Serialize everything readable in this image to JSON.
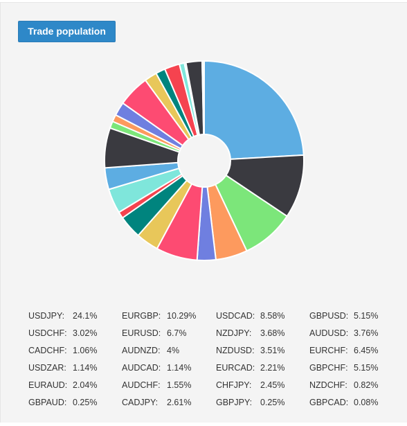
{
  "title_button": {
    "label": "Trade population"
  },
  "chart_data": {
    "type": "pie",
    "donut": true,
    "title": "",
    "series": [
      {
        "name": "USDJPY",
        "value": 24.1,
        "label": "24.1%",
        "color": "#5dade2"
      },
      {
        "name": "EURGBP",
        "value": 10.29,
        "label": "10.29%",
        "color": "#3a3a40"
      },
      {
        "name": "USDCAD",
        "value": 8.58,
        "label": "8.58%",
        "color": "#7ce67a"
      },
      {
        "name": "GBPUSD",
        "value": 5.15,
        "label": "5.15%",
        "color": "#fd9a5e"
      },
      {
        "name": "USDCHF",
        "value": 3.02,
        "label": "3.02%",
        "color": "#6f7fe0"
      },
      {
        "name": "EURUSD",
        "value": 6.7,
        "label": "6.7%",
        "color": "#fd4b72"
      },
      {
        "name": "NZDJPY",
        "value": 3.68,
        "label": "3.68%",
        "color": "#e8c75a"
      },
      {
        "name": "AUDUSD",
        "value": 3.76,
        "label": "3.76%",
        "color": "#00847e"
      },
      {
        "name": "CADCHF",
        "value": 1.06,
        "label": "1.06%",
        "color": "#f5434f"
      },
      {
        "name": "AUDNZD",
        "value": 4,
        "label": "4%",
        "color": "#7fe6db"
      },
      {
        "name": "NZDUSD",
        "value": 3.51,
        "label": "3.51%",
        "color": "#5dade2"
      },
      {
        "name": "EURCHF",
        "value": 6.45,
        "label": "6.45%",
        "color": "#3a3a40"
      },
      {
        "name": "USDZAR",
        "value": 1.14,
        "label": "1.14%",
        "color": "#7ce67a"
      },
      {
        "name": "AUDCAD",
        "value": 1.14,
        "label": "1.14%",
        "color": "#fd9a5e"
      },
      {
        "name": "EURCAD",
        "value": 2.21,
        "label": "2.21%",
        "color": "#6f7fe0"
      },
      {
        "name": "GBPCHF",
        "value": 5.15,
        "label": "5.15%",
        "color": "#fd4b72"
      },
      {
        "name": "EURAUD",
        "value": 2.04,
        "label": "2.04%",
        "color": "#e8c75a"
      },
      {
        "name": "AUDCHF",
        "value": 1.55,
        "label": "1.55%",
        "color": "#00847e"
      },
      {
        "name": "CHFJPY",
        "value": 2.45,
        "label": "2.45%",
        "color": "#f5434f"
      },
      {
        "name": "NZDCHF",
        "value": 0.82,
        "label": "0.82%",
        "color": "#7fe6db"
      },
      {
        "name": "GBPAUD",
        "value": 0.25,
        "label": "0.25%",
        "color": "#5dade2"
      },
      {
        "name": "CADJPY",
        "value": 2.61,
        "label": "2.61%",
        "color": "#3a3a40"
      },
      {
        "name": "GBPJPY",
        "value": 0.25,
        "label": "0.25%",
        "color": "#7ce67a"
      },
      {
        "name": "GBPCAD",
        "value": 0.08,
        "label": "0.08%",
        "color": "#fd9a5e"
      }
    ],
    "legend_placement": "bottom",
    "slice_border_color": "#ffffff"
  }
}
